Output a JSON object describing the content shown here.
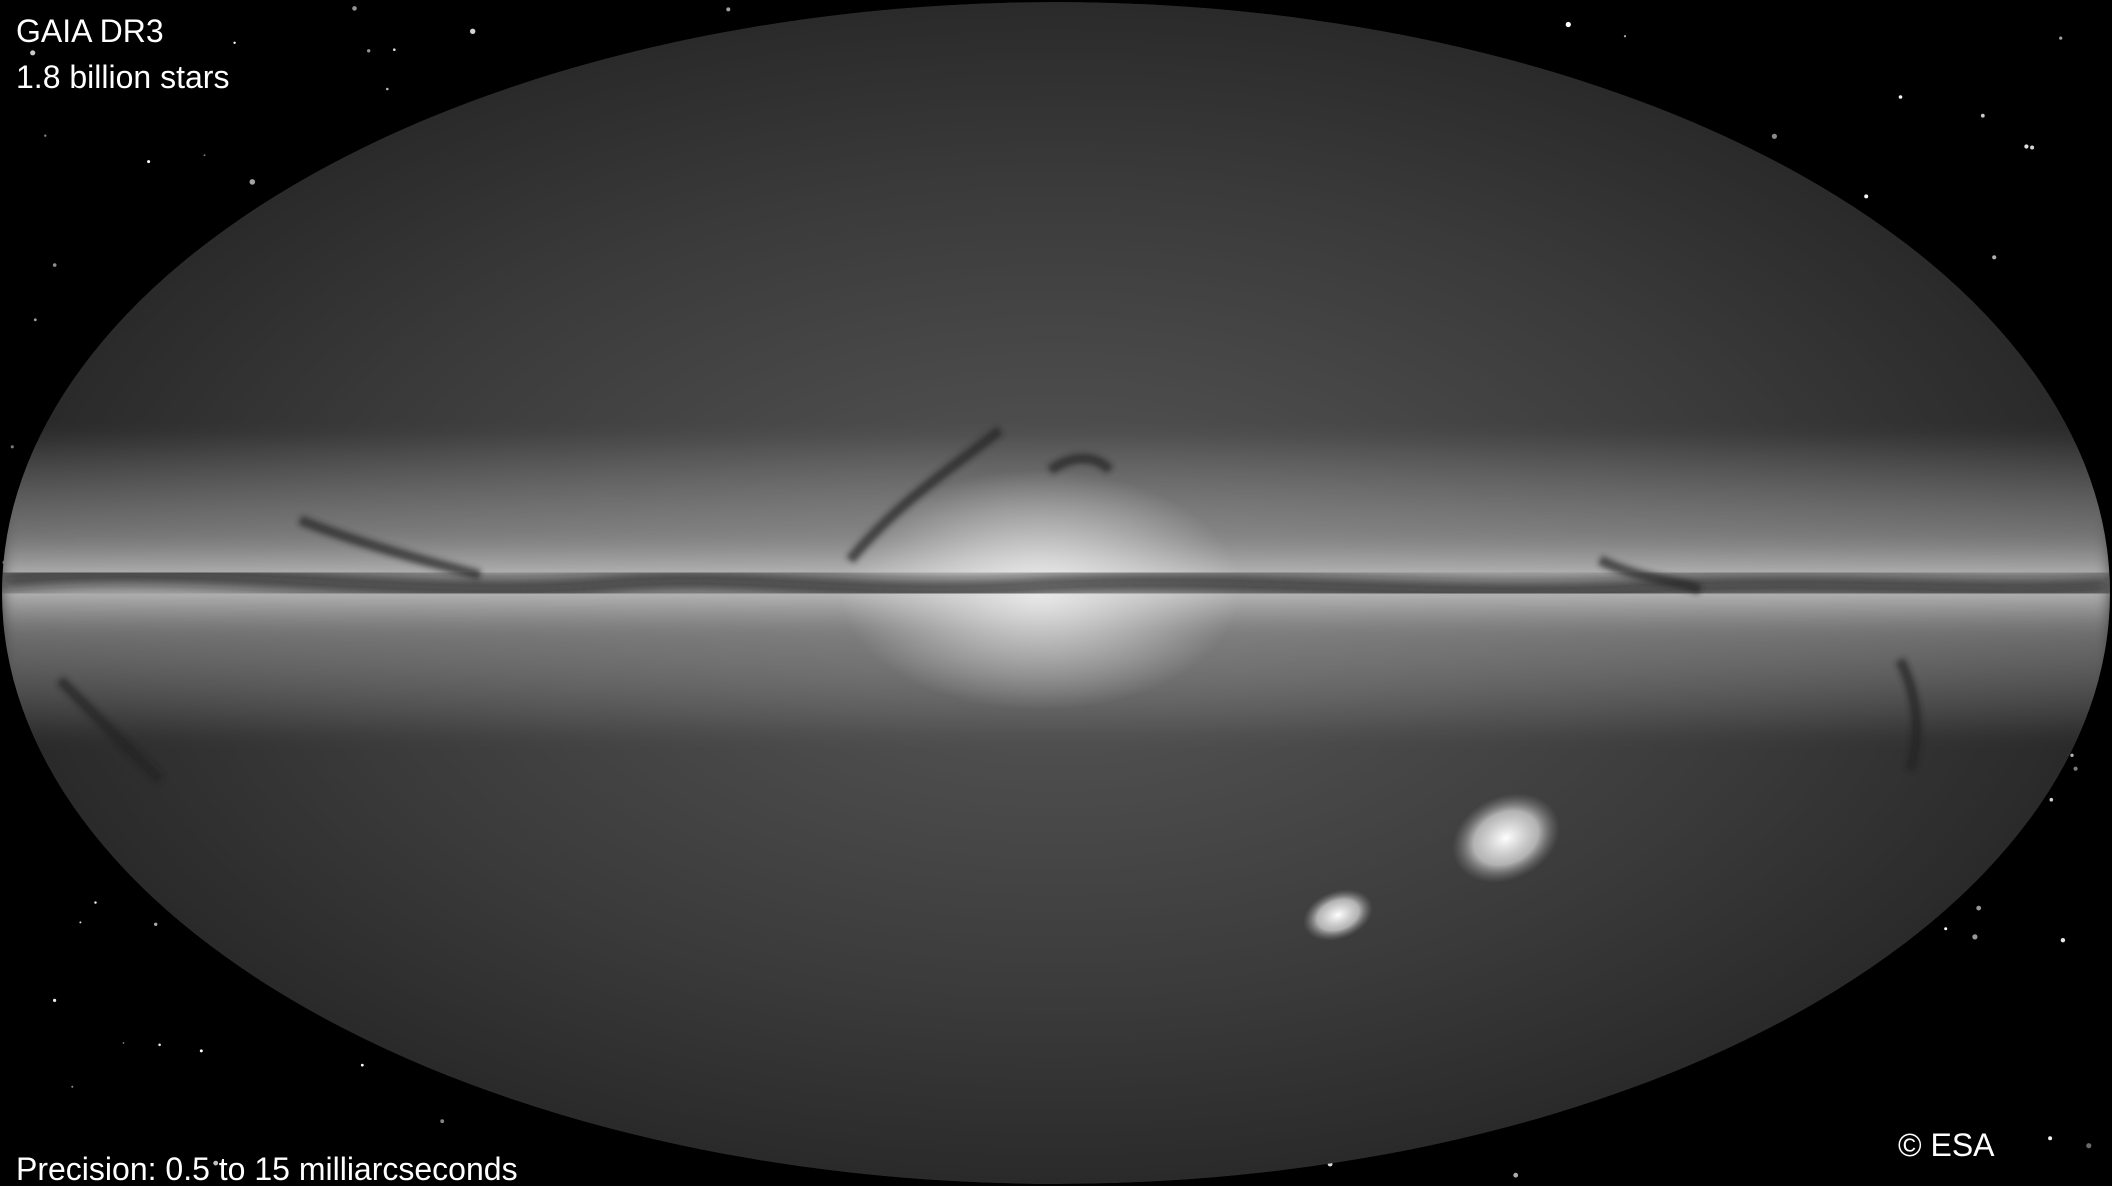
{
  "header": {
    "title": "GAIA DR3",
    "subtitle": "1.8 billion stars"
  },
  "footer": {
    "precision": "Precision: 0.5 to 15 milliarcseconds",
    "credit": "© ESA"
  }
}
